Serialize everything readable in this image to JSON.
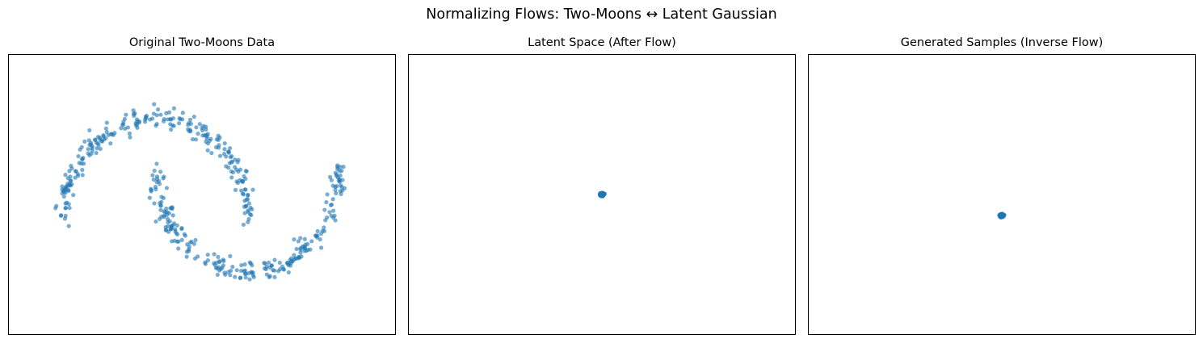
{
  "figure": {
    "suptitle": "Normalizing Flows: Two-Moons ↔ Latent Gaussian",
    "point_color": "#1f77b4"
  },
  "chart_data": [
    {
      "type": "scatter",
      "title": "Original Two-Moons Data",
      "xlabel": "",
      "ylabel": "",
      "xlim": [
        -1.6,
        2.6
      ],
      "ylim": [
        -1.1,
        1.6
      ],
      "ticks": "hidden",
      "grid": false,
      "moons": {
        "upper_arc": {
          "center": [
            0,
            0
          ],
          "radius": 1,
          "from_deg": 0,
          "to_deg": 180
        },
        "lower_arc": {
          "center": [
            1,
            0.5
          ],
          "radius": 1,
          "from_deg": 180,
          "to_deg": 360
        },
        "noise": 0.05,
        "n_samples_per_moon": 250
      },
      "series": []
    },
    {
      "type": "scatter",
      "title": "Latent Space (After Flow)",
      "xlabel": "",
      "ylabel": "",
      "xlim": [
        -1,
        1
      ],
      "ylim": [
        -1,
        1
      ],
      "ticks": "hidden",
      "grid": false,
      "cluster": {
        "center": [
          0,
          0
        ],
        "spread": 0.004,
        "n": 500
      },
      "series": []
    },
    {
      "type": "scatter",
      "title": "Generated Samples (Inverse Flow)",
      "xlabel": "",
      "ylabel": "",
      "xlim": [
        -1,
        1
      ],
      "ylim": [
        -1,
        1
      ],
      "ticks": "hidden",
      "grid": false,
      "cluster": {
        "center": [
          0,
          -0.15
        ],
        "spread": 0.004,
        "n": 500
      },
      "series": []
    }
  ]
}
